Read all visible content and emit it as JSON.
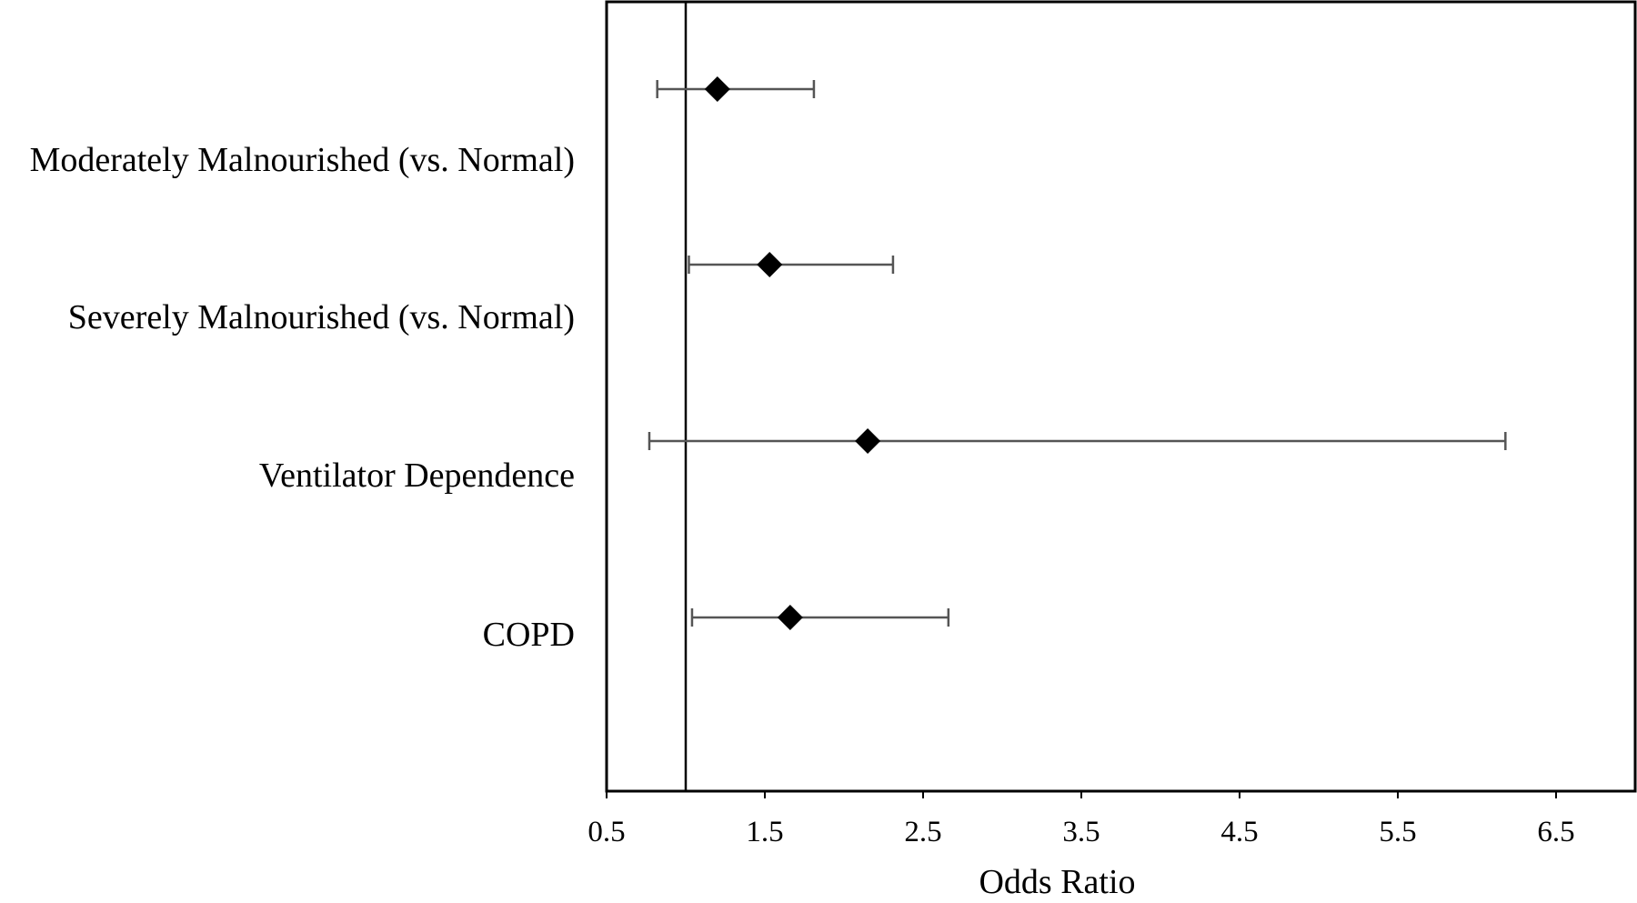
{
  "chart_data": {
    "type": "forest",
    "title": "",
    "xlabel": "Odds Ratio",
    "ylabel": "",
    "xlim": [
      0.5,
      7.0
    ],
    "xticks": [
      "0.5",
      "1.5",
      "2.5",
      "3.5",
      "4.5",
      "5.5",
      "6.5"
    ],
    "xtick_values": [
      0.5,
      1.5,
      2.5,
      3.5,
      4.5,
      5.5,
      6.5
    ],
    "reference_line": 1.0,
    "grid": false,
    "legend": "none",
    "marker": "diamond",
    "colors": {
      "marker": "#000000",
      "error_bar": "#555555",
      "axes": "#000000"
    },
    "rows": [
      {
        "label": "Moderately Malnourished (vs. Normal)",
        "or": 1.2,
        "ci_low": 0.82,
        "ci_high": 1.81
      },
      {
        "label": "Severely Malnourished (vs. Normal)",
        "or": 1.53,
        "ci_low": 1.02,
        "ci_high": 2.31
      },
      {
        "label": "Ventilator Dependence",
        "or": 2.15,
        "ci_low": 0.77,
        "ci_high": 6.18
      },
      {
        "label": "COPD",
        "or": 1.66,
        "ci_low": 1.04,
        "ci_high": 2.66
      }
    ]
  }
}
